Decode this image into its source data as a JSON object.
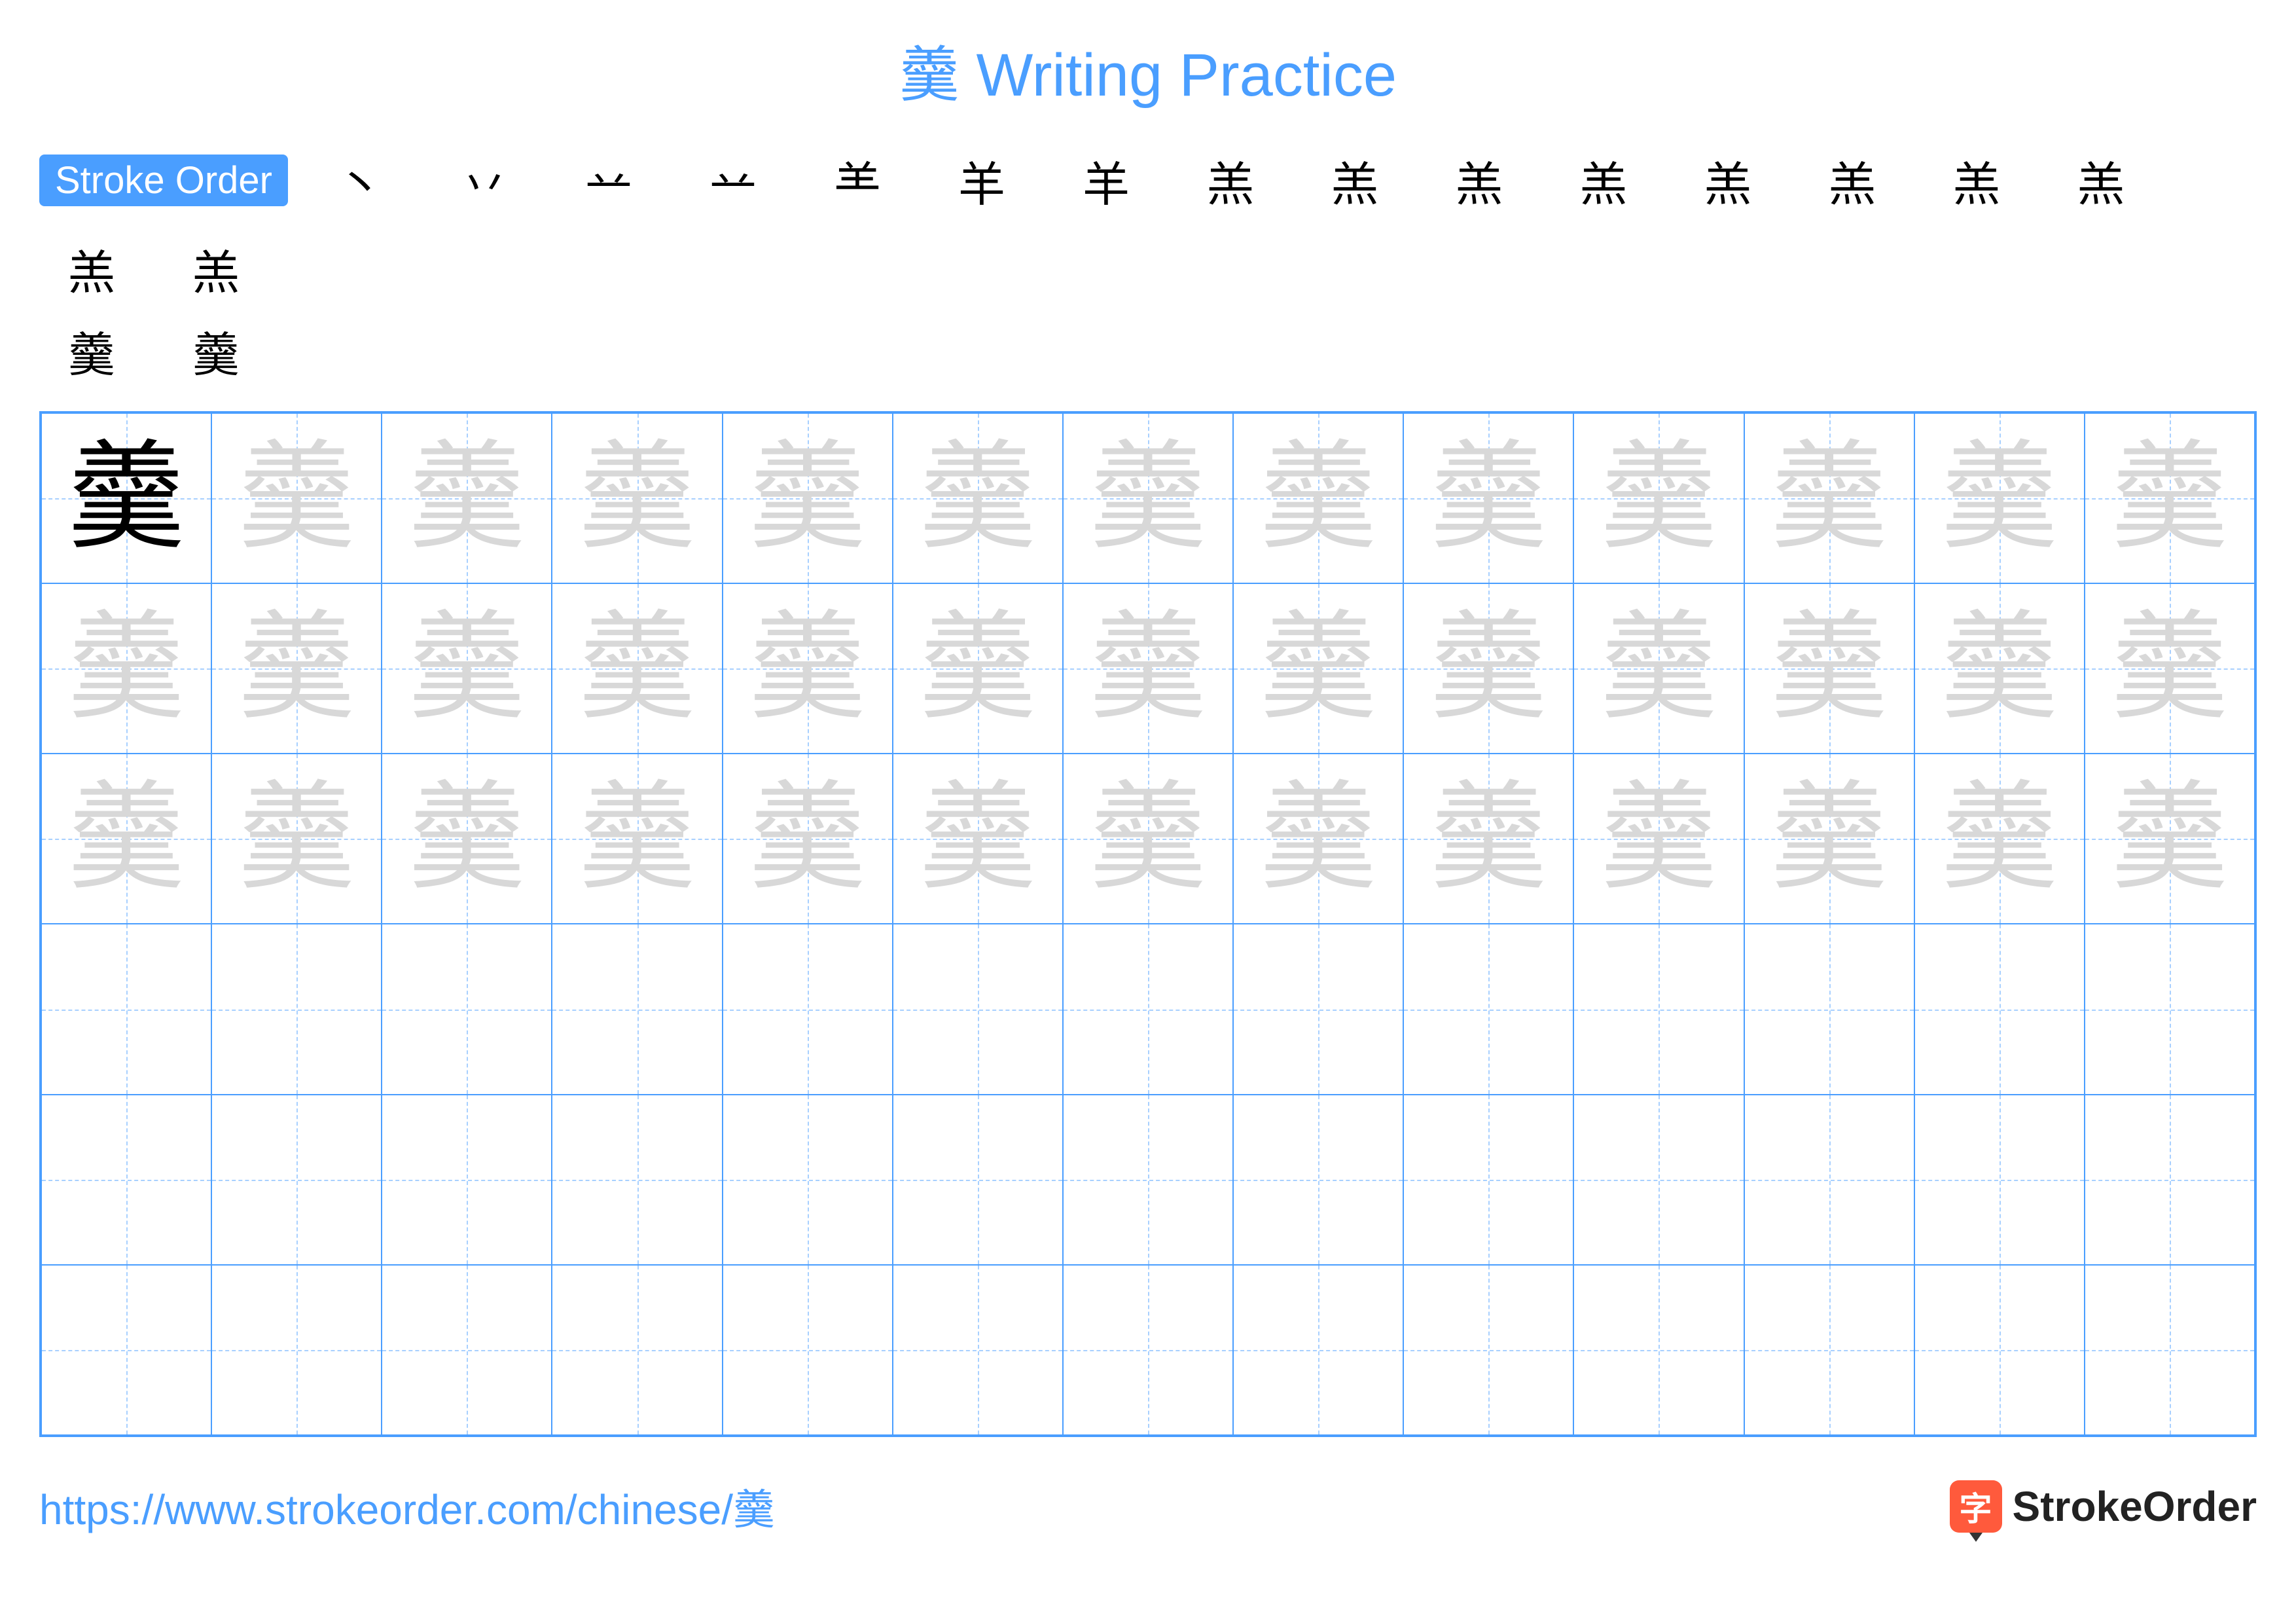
{
  "title": "羹 Writing Practice",
  "character": "羹",
  "strokeOrder": {
    "label": "Stroke Order",
    "badge_bg": "#4a9eff",
    "steps": [
      "丶",
      "丷",
      "䒑",
      "䒑",
      "⺷",
      "羊",
      "羊",
      "羔",
      "羔",
      "羔",
      "羔",
      "羔",
      "羔",
      "羔",
      "羔",
      "羔",
      "羔",
      "羹",
      "羹"
    ]
  },
  "grid": {
    "rows": 6,
    "cols": 13,
    "border_color": "#4a9eff",
    "guide_color": "#a8d0ff",
    "traced_rows": 3,
    "model_color": "#000000",
    "trace_color": "#d8d8d8",
    "cell_font_size": 180
  },
  "footer": {
    "url": "https://www.strokeorder.com/chinese/羹",
    "url_color": "#4a9eff",
    "logo_char": "字",
    "logo_bg": "#ff5a3c",
    "logo_text": "StrokeOrder"
  },
  "colors": {
    "title": "#4a9eff",
    "background": "#ffffff"
  }
}
